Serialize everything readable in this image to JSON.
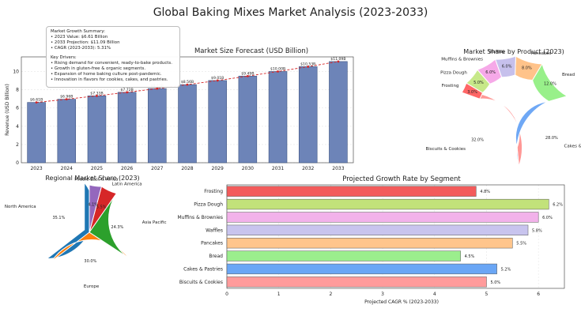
{
  "title": "Global Baking Mixes Market Analysis (2023-2033)",
  "summary": {
    "heading": "Market Growth Summary:",
    "lines": [
      "• 2023 Value: $6.61 Billion",
      "• 2033 Projection: $11.09 Billion",
      "• CAGR (2023-2033): 5.31%"
    ],
    "drivers_heading": "Key Drivers:",
    "drivers": [
      "• Rising demand for convenient, ready-to-bake products.",
      "• Growth in gluten-free & organic segments.",
      "• Expansion of home baking culture post-pandemic.",
      "• Innovation in flavors for cookies, cakes, and pastries."
    ]
  },
  "colors": {
    "bar": "#6d84b8",
    "trend": "#d62728",
    "pie": [
      "#1f77b4",
      "#ff7f0e",
      "#2ca02c",
      "#d62728",
      "#9467bd"
    ],
    "donut": [
      "#ff9896",
      "#6fa8f5",
      "#98f08a",
      "#ffc38a",
      "#c6c0ec",
      "#f6a9e8",
      "#c7e889",
      "#ff6666"
    ]
  },
  "chart_data": [
    {
      "type": "bar",
      "title": "Market Size Forecast (USD Billion)",
      "xlabel": "",
      "ylabel": "Revenue (USD Billion)",
      "categories": [
        "2023",
        "2024",
        "2025",
        "2026",
        "2027",
        "2028",
        "2029",
        "2030",
        "2031",
        "2032",
        "2033"
      ],
      "values": [
        6.61,
        6.96,
        7.33,
        7.72,
        8.13,
        8.56,
        9.01,
        9.49,
        10.0,
        10.53,
        11.09
      ],
      "data_labels": [
        "$6.61B",
        "$6.96B",
        "$7.33B",
        "$7.72B",
        "$8.13B",
        "$8.56B",
        "$9.01B",
        "$9.49B",
        "$10.00B",
        "$10.53B",
        "$11.09B"
      ],
      "ylim": [
        0,
        11.6
      ],
      "yticks": [
        0,
        2,
        4,
        6,
        8,
        10
      ],
      "grid": true
    },
    {
      "type": "pie",
      "title": "Market Share by Product (2023)",
      "donut": true,
      "labels": [
        "Biscuits & Cookies",
        "Cakes & Pastries",
        "Bread",
        "Pancakes",
        "Waffles",
        "Muffins & Brownies",
        "Pizza Dough",
        "Frosting"
      ],
      "values": [
        32.0,
        28.0,
        12.0,
        8.0,
        6.0,
        6.0,
        5.0,
        3.0
      ],
      "value_labels": [
        "32.0%",
        "28.0%",
        "12.0%",
        "8.0%",
        "6.0%",
        "6.0%",
        "5.0%",
        "3.0%"
      ]
    },
    {
      "type": "pie",
      "title": "Regional Market Share (2023)",
      "labels": [
        "North America",
        "Europe",
        "Asia Pacific",
        "Latin America",
        "Middle East & Africa"
      ],
      "values": [
        35.1,
        30.0,
        24.3,
        5.5,
        4.1
      ],
      "value_labels": [
        "35.1%",
        "30.0%",
        "24.3%",
        "5.5%",
        "4.1%"
      ],
      "explode": "North America"
    },
    {
      "type": "bar",
      "orientation": "horizontal",
      "title": "Projected Growth Rate by Segment",
      "xlabel": "Projected CAGR % (2023-2033)",
      "ylabel": "",
      "categories": [
        "Frosting",
        "Pizza Dough",
        "Muffins & Brownies",
        "Waffles",
        "Pancakes",
        "Bread",
        "Cakes & Pastries",
        "Biscuits & Cookies"
      ],
      "values": [
        4.8,
        6.2,
        6.0,
        5.8,
        5.5,
        4.5,
        5.2,
        5.0
      ],
      "data_labels": [
        "4.8%",
        "6.2%",
        "6.0%",
        "5.8%",
        "5.5%",
        "4.5%",
        "5.2%",
        "5.0%"
      ],
      "bar_colors": [
        "#f35b5b",
        "#c2e27a",
        "#f2b2ea",
        "#c8c4ee",
        "#ffc58c",
        "#9bee8d",
        "#6aa6f5",
        "#ff9b9b"
      ],
      "xlim": [
        0,
        6.5
      ],
      "xticks": [
        0,
        1,
        2,
        3,
        4,
        5,
        6
      ],
      "grid": true
    }
  ]
}
